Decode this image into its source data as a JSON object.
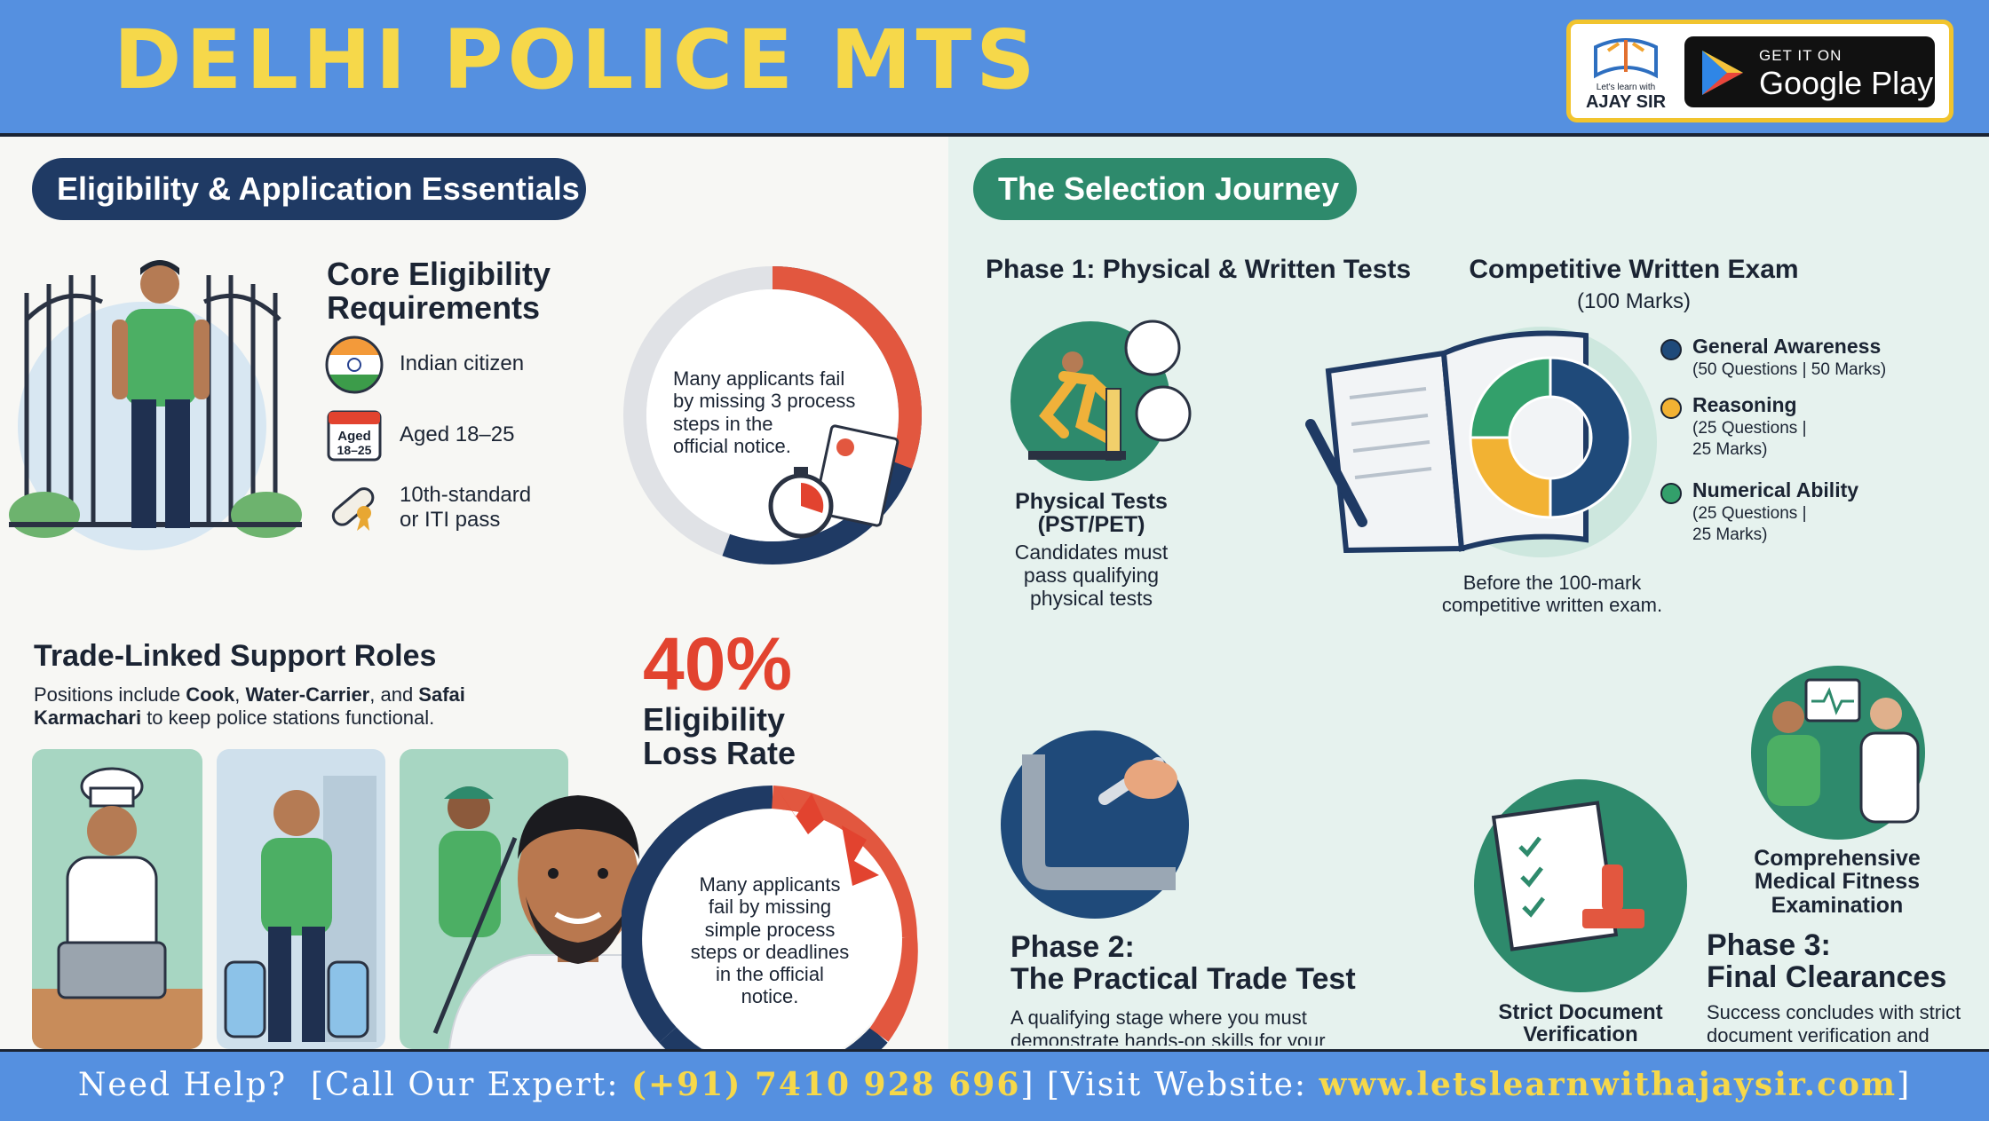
{
  "header": {
    "title": "DELHI POLICE MTS",
    "logo_tagline": "Let's learn with",
    "logo_name": "AJAY SIR",
    "play_pre": "GET IT ON",
    "play_name": "Google Play"
  },
  "left": {
    "section_pill": "Eligibility & Application Essentials",
    "core": {
      "title_line1": "Core Eligibility",
      "title_line2": "Requirements",
      "items": [
        {
          "icon": "india-flag-icon",
          "text": "Indian citizen"
        },
        {
          "icon": "calendar-icon",
          "badge": "Aged\n18–25",
          "text": "Aged 18–25"
        },
        {
          "icon": "diploma-icon",
          "text_line1": "10th-standard",
          "text_line2": "or ITI pass"
        }
      ]
    },
    "donut1_note_lines": [
      "Many applicants fail",
      "by missing 3 process",
      "steps in the",
      "official notice."
    ],
    "trade": {
      "title": "Trade-Linked Support Roles",
      "desc_pre": "Positions include ",
      "role1": "Cook",
      "sep1": ", ",
      "role2": "Water-Carrier",
      "sep2": ", and ",
      "role3": "Safai",
      "role3b": "Karmachari",
      "desc_post": " to keep police stations functional."
    },
    "stat": {
      "value": "40%",
      "label_line1": "Eligibility",
      "label_line2": "Loss Rate"
    },
    "donut2_note_lines": [
      "Many applicants",
      "fail by missing",
      "simple process",
      "steps or deadlines",
      "in the official",
      "notice."
    ]
  },
  "right": {
    "section_pill": "The Selection Journey",
    "phase1": {
      "title": "Phase 1: Physical & Written Tests",
      "physical_title_line1": "Physical Tests",
      "physical_title_line2": "(PST/PET)",
      "physical_desc_lines": [
        "Candidates must",
        "pass qualifying",
        "physical tests"
      ]
    },
    "exam": {
      "title": "Competitive Written Exam",
      "subtitle": "(100 Marks)",
      "caption_line1": "Before the 100-mark",
      "caption_line2": "competitive written exam.",
      "segments": [
        {
          "name": "General Awareness",
          "detail": "(50 Questions | 50 Marks)",
          "marks": 50,
          "color": "#1f4a7a"
        },
        {
          "name": "Reasoning",
          "detail_line1": "(25 Questions |",
          "detail_line2": "25 Marks)",
          "marks": 25,
          "color": "#f2b233"
        },
        {
          "name": "Numerical Ability",
          "detail_line1": "(25 Questions |",
          "detail_line2": "25 Marks)",
          "marks": 25,
          "color": "#33a06b"
        }
      ]
    },
    "phase2": {
      "title_line1": "Phase 2:",
      "title_line2": "The Practical Trade Test",
      "desc_line1": "A qualifying stage where you must",
      "desc_line2": "demonstrate hands-on skills for your"
    },
    "doc": {
      "title_line1": "Strict Document",
      "title_line2": "Verification"
    },
    "medical": {
      "title_line1": "Comprehensive",
      "title_line2": "Medical Fitness",
      "title_line3": "Examination"
    },
    "phase3": {
      "title_line1": "Phase 3:",
      "title_line2": "Final Clearances",
      "desc_line1": "Success concludes with strict",
      "desc_line2": "document verification and"
    }
  },
  "footer": {
    "need_help": "Need Help?",
    "call_pre": "[Call Our Expert: ",
    "phone": "(+91) 7410 928 696",
    "call_post": "]",
    "visit_pre": "[Visit Website: ",
    "website": "www.letslearnwithajaysir.com",
    "visit_post": "]"
  },
  "watermark": "Let's learn with AJAY SIR",
  "colors": {
    "header_blue": "#5590e0",
    "title_yellow": "#f6d84a",
    "navy": "#1f3a64",
    "green": "#2e8a6c",
    "red": "#e2432f"
  }
}
